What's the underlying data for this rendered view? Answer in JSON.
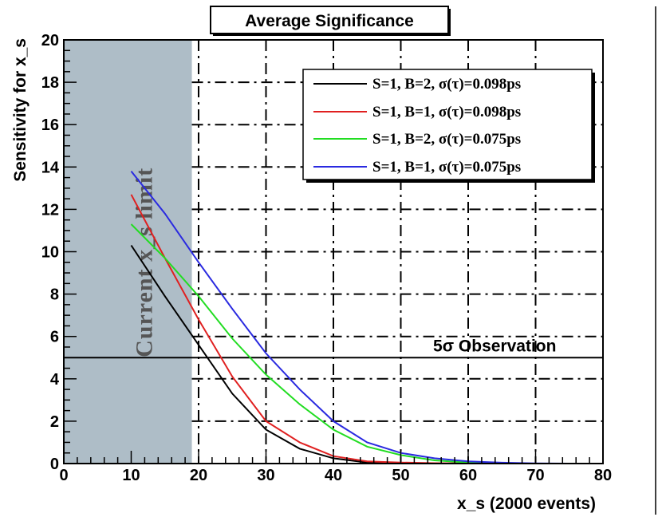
{
  "chart_data": {
    "type": "line",
    "title": "Average Significance",
    "xlabel": "x_s (2000 events)",
    "ylabel": "Sensitivity for x_s",
    "xlim": [
      0,
      80
    ],
    "ylim": [
      0,
      20
    ],
    "xticks": [
      0,
      10,
      20,
      30,
      40,
      50,
      60,
      70,
      80
    ],
    "yticks": [
      0,
      2,
      4,
      6,
      8,
      10,
      12,
      14,
      16,
      18,
      20
    ],
    "grid": true,
    "legend_position": "top-right",
    "excluded_region": {
      "x_from": 0,
      "x_to": 19,
      "label": "Current x_s limit",
      "color": "#aebdc7"
    },
    "reference_line": {
      "y": 5,
      "label": "5σ Observation"
    },
    "series": [
      {
        "name": "S=1, B=2, σ(τ)=0.098ps",
        "color": "#000000",
        "x": [
          10,
          15,
          20,
          25,
          30,
          35,
          40,
          45,
          50,
          55,
          60
        ],
        "y": [
          10.3,
          7.9,
          5.6,
          3.3,
          1.6,
          0.7,
          0.25,
          0.05,
          0.02,
          0.0,
          0.0
        ]
      },
      {
        "name": "S=1, B=1, σ(τ)=0.098ps",
        "color": "#e02020",
        "x": [
          10,
          15,
          20,
          25,
          30,
          35,
          40,
          45,
          50,
          55,
          60,
          65,
          69
        ],
        "y": [
          12.7,
          9.7,
          6.8,
          4.1,
          2.0,
          1.0,
          0.35,
          0.1,
          0.05,
          0.02,
          0.01,
          0.0,
          0.0
        ]
      },
      {
        "name": "S=1, B=2, σ(τ)=0.075ps",
        "color": "#22dd22",
        "x": [
          10,
          15,
          20,
          25,
          30,
          35,
          40,
          45,
          50,
          55,
          60,
          65,
          69
        ],
        "y": [
          11.3,
          9.7,
          7.9,
          5.9,
          4.2,
          2.8,
          1.6,
          0.8,
          0.4,
          0.15,
          0.05,
          0.01,
          0.0
        ]
      },
      {
        "name": "S=1, B=1, σ(τ)=0.075ps",
        "color": "#2a2ae0",
        "x": [
          10,
          15,
          20,
          25,
          30,
          35,
          40,
          45,
          50,
          55,
          60,
          65,
          70,
          75,
          80
        ],
        "y": [
          13.8,
          11.8,
          9.5,
          7.3,
          5.2,
          3.5,
          2.0,
          1.0,
          0.5,
          0.25,
          0.1,
          0.04,
          0.01,
          0.0,
          0.0
        ]
      }
    ]
  }
}
